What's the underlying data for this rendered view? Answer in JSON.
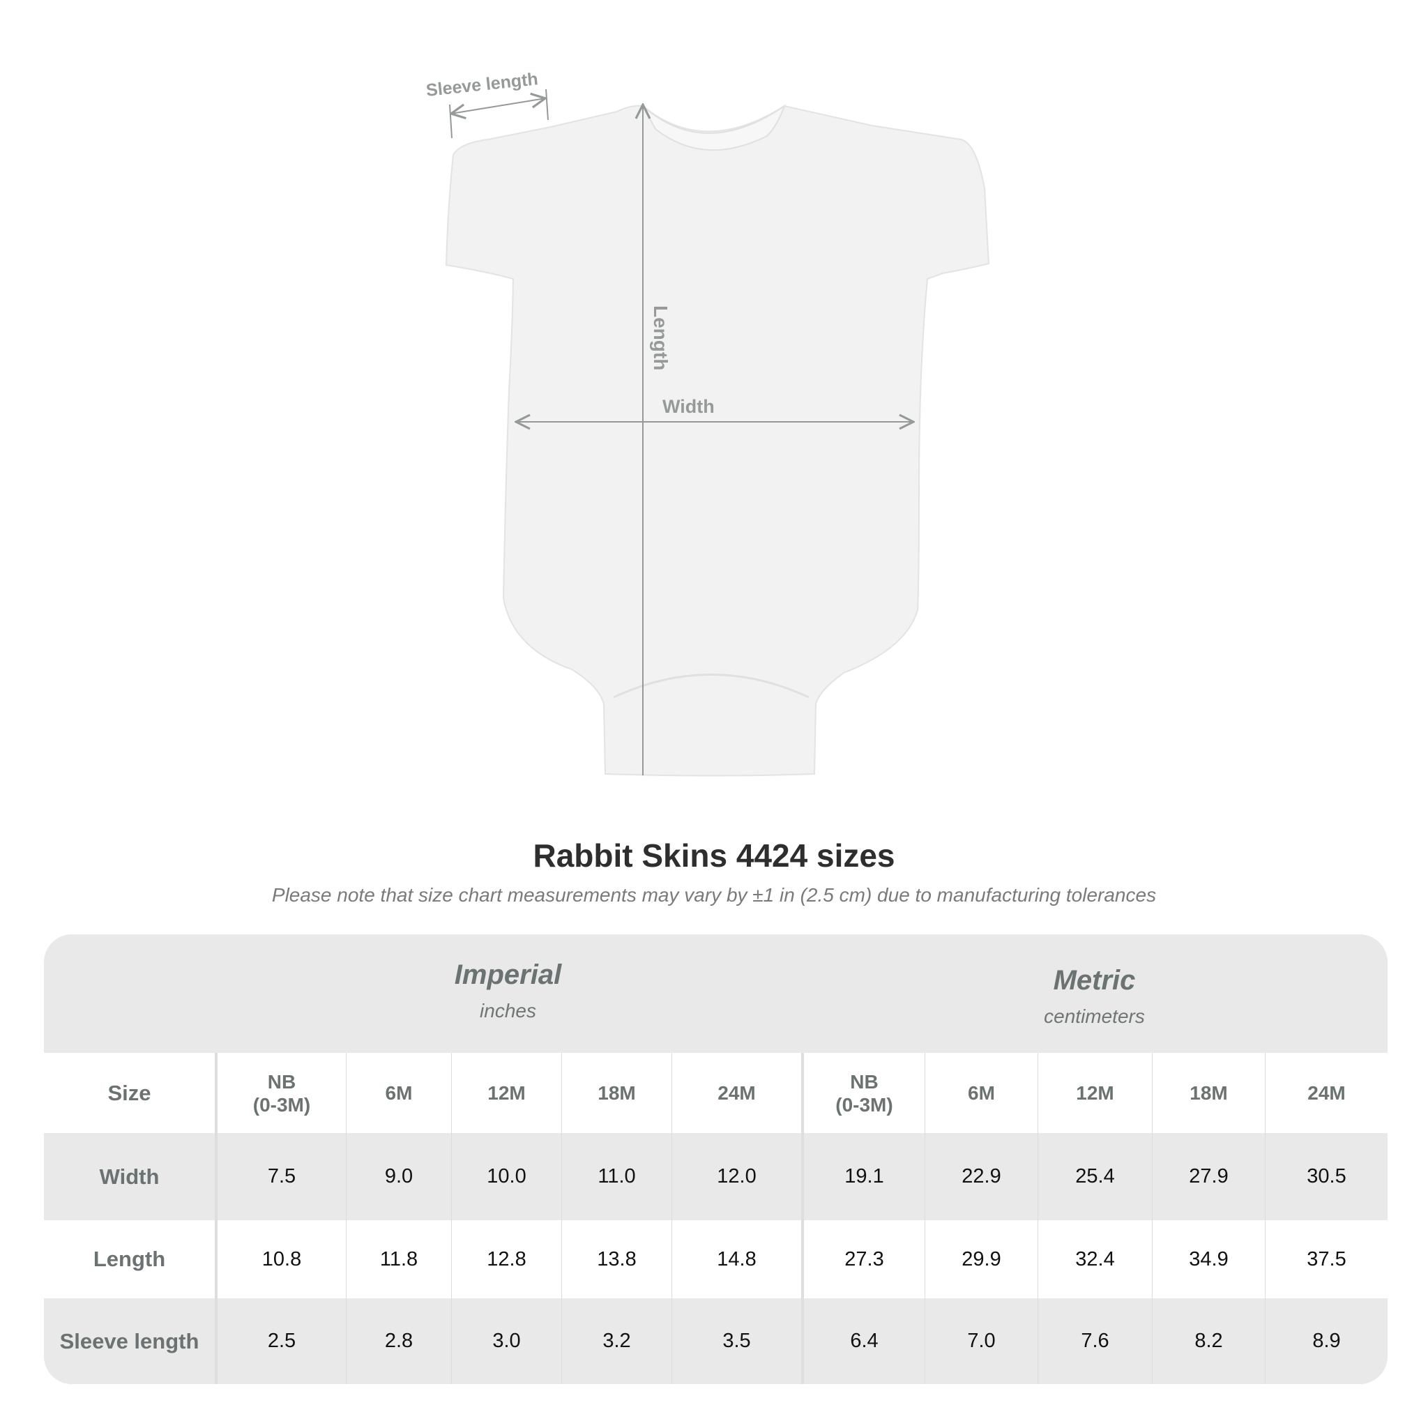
{
  "diagram": {
    "labels": {
      "sleeve": "Sleeve length",
      "length": "Length",
      "width": "Width"
    },
    "colors": {
      "garment": "#f2f2f2",
      "measure_line": "#959a99"
    }
  },
  "title": "Rabbit Skins 4424 sizes",
  "note": "Please note that size chart measurements may vary by ±1 in (2.5 cm) due to manufacturing tolerances",
  "table": {
    "groups": [
      {
        "name": "Imperial",
        "unit": "inches"
      },
      {
        "name": "Metric",
        "unit": "centimeters"
      }
    ],
    "size_label": "Size",
    "sizes": [
      {
        "line1": "NB",
        "line2": "(0-3M)"
      },
      {
        "line1": "6M"
      },
      {
        "line1": "12M"
      },
      {
        "line1": "18M"
      },
      {
        "line1": "24M"
      },
      {
        "line1": "NB",
        "line2": "(0-3M)"
      },
      {
        "line1": "6M"
      },
      {
        "line1": "12M"
      },
      {
        "line1": "18M"
      },
      {
        "line1": "24M"
      }
    ],
    "rows": [
      {
        "label": "Width",
        "values": [
          "7.5",
          "9.0",
          "10.0",
          "11.0",
          "12.0",
          "19.1",
          "22.9",
          "25.4",
          "27.9",
          "30.5"
        ]
      },
      {
        "label": "Length",
        "values": [
          "10.8",
          "11.8",
          "12.8",
          "13.8",
          "14.8",
          "27.3",
          "29.9",
          "32.4",
          "34.9",
          "37.5"
        ]
      },
      {
        "label": "Sleeve length",
        "values": [
          "2.5",
          "2.8",
          "3.0",
          "3.2",
          "3.5",
          "6.4",
          "7.0",
          "7.6",
          "8.2",
          "8.9"
        ]
      }
    ],
    "colors": {
      "header_bg": "#e9e9e9",
      "label_text": "#6a7272"
    }
  }
}
